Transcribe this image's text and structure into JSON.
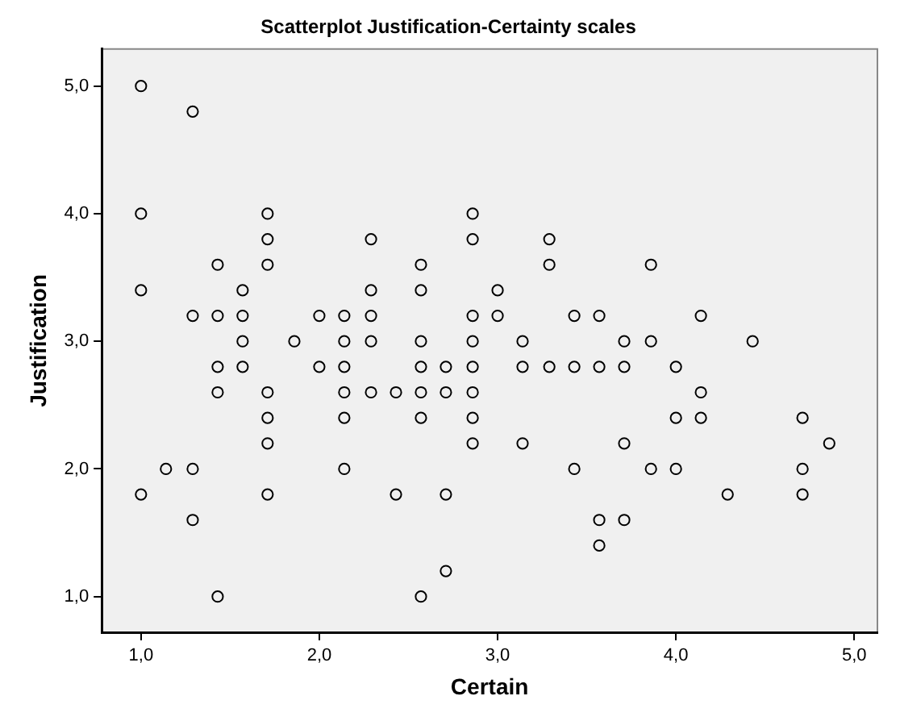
{
  "chart_data": {
    "type": "scatter",
    "title": "Scatterplot Justification-Certainty scales",
    "xlabel": "Certain",
    "ylabel": "Justification",
    "marker": "circle",
    "grid": false,
    "legend": false,
    "xlim": [
      0.78,
      5.13
    ],
    "ylim": [
      0.72,
      5.29
    ],
    "xticks": [
      {
        "value": 1,
        "label": "1,0"
      },
      {
        "value": 2,
        "label": "2,0"
      },
      {
        "value": 3,
        "label": "3,0"
      },
      {
        "value": 4,
        "label": "4,0"
      },
      {
        "value": 5,
        "label": "5,0"
      }
    ],
    "yticks": [
      {
        "value": 1,
        "label": "1,0"
      },
      {
        "value": 2,
        "label": "2,0"
      },
      {
        "value": 3,
        "label": "3,0"
      },
      {
        "value": 4,
        "label": "4,0"
      },
      {
        "value": 5,
        "label": "5,0"
      }
    ],
    "series": [
      {
        "color": "#000000",
        "x": [
          1.0,
          1.29,
          1.0,
          1.71,
          2.86,
          1.71,
          2.29,
          2.86,
          3.29,
          1.43,
          1.71,
          2.57,
          3.29,
          3.86,
          1.0,
          1.57,
          2.29,
          2.57,
          3.0,
          1.29,
          1.43,
          1.57,
          2.0,
          2.14,
          2.29,
          2.86,
          3.0,
          3.43,
          3.57,
          4.14,
          1.57,
          1.86,
          2.14,
          2.29,
          2.57,
          2.86,
          3.14,
          3.71,
          3.86,
          4.43,
          1.43,
          1.57,
          2.0,
          2.14,
          2.57,
          2.71,
          2.86,
          3.14,
          3.29,
          3.43,
          3.57,
          3.71,
          4.0,
          1.43,
          1.71,
          2.14,
          2.29,
          2.43,
          2.57,
          2.71,
          2.86,
          4.14,
          1.71,
          2.14,
          2.57,
          2.86,
          4.0,
          4.14,
          4.71,
          1.71,
          2.86,
          3.14,
          3.71,
          4.86,
          1.14,
          1.29,
          2.14,
          3.43,
          3.86,
          4.0,
          4.71,
          1.0,
          1.71,
          2.43,
          2.71,
          4.29,
          4.71,
          1.29,
          3.57,
          3.71,
          3.57,
          2.71,
          1.43,
          2.57
        ],
        "values": [
          5.0,
          4.8,
          4.0,
          4.0,
          4.0,
          3.8,
          3.8,
          3.8,
          3.8,
          3.6,
          3.6,
          3.6,
          3.6,
          3.6,
          3.4,
          3.4,
          3.4,
          3.4,
          3.4,
          3.2,
          3.2,
          3.2,
          3.2,
          3.2,
          3.2,
          3.2,
          3.2,
          3.2,
          3.2,
          3.2,
          3.0,
          3.0,
          3.0,
          3.0,
          3.0,
          3.0,
          3.0,
          3.0,
          3.0,
          3.0,
          2.8,
          2.8,
          2.8,
          2.8,
          2.8,
          2.8,
          2.8,
          2.8,
          2.8,
          2.8,
          2.8,
          2.8,
          2.8,
          2.6,
          2.6,
          2.6,
          2.6,
          2.6,
          2.6,
          2.6,
          2.6,
          2.6,
          2.4,
          2.4,
          2.4,
          2.4,
          2.4,
          2.4,
          2.4,
          2.2,
          2.2,
          2.2,
          2.2,
          2.2,
          2.0,
          2.0,
          2.0,
          2.0,
          2.0,
          2.0,
          2.0,
          1.8,
          1.8,
          1.8,
          1.8,
          1.8,
          1.8,
          1.6,
          1.6,
          1.6,
          1.4,
          1.2,
          1.0,
          1.0
        ]
      }
    ]
  }
}
